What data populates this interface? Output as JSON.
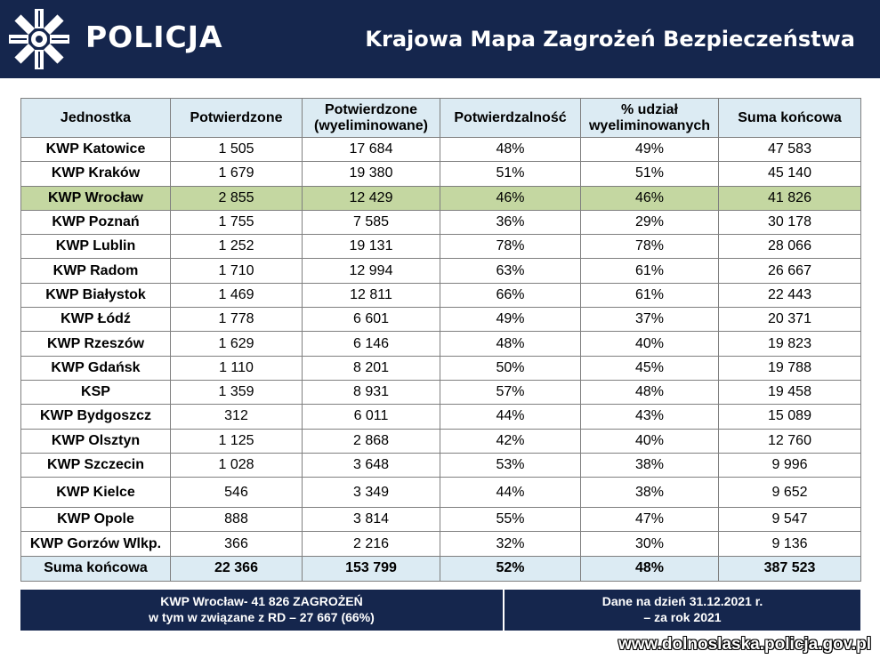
{
  "header": {
    "logo_text": "POLICJA",
    "logo_icon": "police-star-icon",
    "title": "Krajowa Mapa Zagrożeń Bezpieczeństwa"
  },
  "table": {
    "headers": [
      "Jednostka",
      "Potwierdzone",
      "Potwierdzone (wyeliminowane)",
      "Potwierdzalność",
      "% udział wyeliminowanych",
      "Suma końcowa"
    ],
    "rows": [
      [
        "KWP Katowice",
        "1 505",
        "17 684",
        "48%",
        "49%",
        "47 583"
      ],
      [
        "KWP Kraków",
        "1 679",
        "19 380",
        "51%",
        "51%",
        "45 140"
      ],
      [
        "KWP Wrocław",
        "2 855",
        "12 429",
        "46%",
        "46%",
        "41 826"
      ],
      [
        "KWP Poznań",
        "1 755",
        "7 585",
        "36%",
        "29%",
        "30 178"
      ],
      [
        "KWP Lublin",
        "1 252",
        "19 131",
        "78%",
        "78%",
        "28 066"
      ],
      [
        "KWP Radom",
        "1 710",
        "12 994",
        "63%",
        "61%",
        "26 667"
      ],
      [
        "KWP Białystok",
        "1 469",
        "12 811",
        "66%",
        "61%",
        "22 443"
      ],
      [
        "KWP Łódź",
        "1 778",
        "6 601",
        "49%",
        "37%",
        "20 371"
      ],
      [
        "KWP Rzeszów",
        "1 629",
        "6 146",
        "48%",
        "40%",
        "19 823"
      ],
      [
        "KWP Gdańsk",
        "1 110",
        "8 201",
        "50%",
        "45%",
        "19 788"
      ],
      [
        "KSP",
        "1 359",
        "8 931",
        "57%",
        "48%",
        "19 458"
      ],
      [
        "KWP Bydgoszcz",
        "312",
        "6 011",
        "44%",
        "43%",
        "15 089"
      ],
      [
        "KWP Olsztyn",
        "1 125",
        "2 868",
        "42%",
        "40%",
        "12 760"
      ],
      [
        "KWP Szczecin",
        "1 028",
        "3 648",
        "53%",
        "38%",
        "9 996"
      ],
      [
        "KWP Kielce",
        "546",
        "3 349",
        "44%",
        "38%",
        "9 652"
      ],
      [
        "KWP Opole",
        "888",
        "3 814",
        "55%",
        "47%",
        "9 547"
      ],
      [
        "KWP Gorzów Wlkp.",
        "366",
        "2 216",
        "32%",
        "30%",
        "9 136"
      ]
    ],
    "highlight_row": "KWP Wrocław",
    "highlight_color": "#c4d7a1",
    "total": [
      "Suma końcowa",
      "22 366",
      "153 799",
      "52%",
      "48%",
      "387 523"
    ]
  },
  "info": {
    "left_line1": "KWP Wrocław- 41 826 ZAGROŻEŃ",
    "left_line2": "w tym w związane z RD – 27 667 (66%)",
    "right_line1": "Dane na dzień 31.12.2021 r.",
    "right_line2": "– za rok 2021"
  },
  "footer": {
    "website": "www.dolnoslaska.policja.gov.pl"
  },
  "colors": {
    "navy": "#15264d",
    "header_cell": "#dcebf3",
    "highlight": "#c4d7a1"
  }
}
